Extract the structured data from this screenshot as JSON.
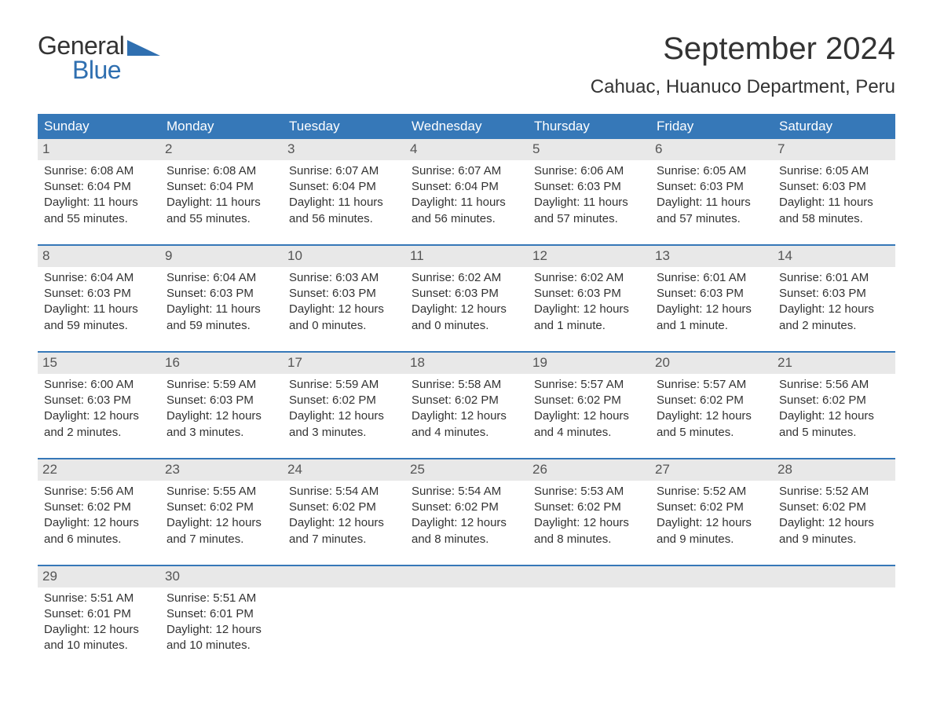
{
  "colors": {
    "brand_blue": "#2f6fb0",
    "header_blue": "#3678b8",
    "text": "#333333",
    "daynum_bg": "#e8e8e8",
    "daynum_text": "#555555",
    "bg": "#ffffff"
  },
  "logo": {
    "general": "General",
    "blue": "Blue"
  },
  "title": "September 2024",
  "location": "Cahuac, Huanuco Department, Peru",
  "weekdays": [
    "Sunday",
    "Monday",
    "Tuesday",
    "Wednesday",
    "Thursday",
    "Friday",
    "Saturday"
  ],
  "weeks": [
    [
      {
        "n": "1",
        "sr": "Sunrise: 6:08 AM",
        "ss": "Sunset: 6:04 PM",
        "d1": "Daylight: 11 hours",
        "d2": "and 55 minutes."
      },
      {
        "n": "2",
        "sr": "Sunrise: 6:08 AM",
        "ss": "Sunset: 6:04 PM",
        "d1": "Daylight: 11 hours",
        "d2": "and 55 minutes."
      },
      {
        "n": "3",
        "sr": "Sunrise: 6:07 AM",
        "ss": "Sunset: 6:04 PM",
        "d1": "Daylight: 11 hours",
        "d2": "and 56 minutes."
      },
      {
        "n": "4",
        "sr": "Sunrise: 6:07 AM",
        "ss": "Sunset: 6:04 PM",
        "d1": "Daylight: 11 hours",
        "d2": "and 56 minutes."
      },
      {
        "n": "5",
        "sr": "Sunrise: 6:06 AM",
        "ss": "Sunset: 6:03 PM",
        "d1": "Daylight: 11 hours",
        "d2": "and 57 minutes."
      },
      {
        "n": "6",
        "sr": "Sunrise: 6:05 AM",
        "ss": "Sunset: 6:03 PM",
        "d1": "Daylight: 11 hours",
        "d2": "and 57 minutes."
      },
      {
        "n": "7",
        "sr": "Sunrise: 6:05 AM",
        "ss": "Sunset: 6:03 PM",
        "d1": "Daylight: 11 hours",
        "d2": "and 58 minutes."
      }
    ],
    [
      {
        "n": "8",
        "sr": "Sunrise: 6:04 AM",
        "ss": "Sunset: 6:03 PM",
        "d1": "Daylight: 11 hours",
        "d2": "and 59 minutes."
      },
      {
        "n": "9",
        "sr": "Sunrise: 6:04 AM",
        "ss": "Sunset: 6:03 PM",
        "d1": "Daylight: 11 hours",
        "d2": "and 59 minutes."
      },
      {
        "n": "10",
        "sr": "Sunrise: 6:03 AM",
        "ss": "Sunset: 6:03 PM",
        "d1": "Daylight: 12 hours",
        "d2": "and 0 minutes."
      },
      {
        "n": "11",
        "sr": "Sunrise: 6:02 AM",
        "ss": "Sunset: 6:03 PM",
        "d1": "Daylight: 12 hours",
        "d2": "and 0 minutes."
      },
      {
        "n": "12",
        "sr": "Sunrise: 6:02 AM",
        "ss": "Sunset: 6:03 PM",
        "d1": "Daylight: 12 hours",
        "d2": "and 1 minute."
      },
      {
        "n": "13",
        "sr": "Sunrise: 6:01 AM",
        "ss": "Sunset: 6:03 PM",
        "d1": "Daylight: 12 hours",
        "d2": "and 1 minute."
      },
      {
        "n": "14",
        "sr": "Sunrise: 6:01 AM",
        "ss": "Sunset: 6:03 PM",
        "d1": "Daylight: 12 hours",
        "d2": "and 2 minutes."
      }
    ],
    [
      {
        "n": "15",
        "sr": "Sunrise: 6:00 AM",
        "ss": "Sunset: 6:03 PM",
        "d1": "Daylight: 12 hours",
        "d2": "and 2 minutes."
      },
      {
        "n": "16",
        "sr": "Sunrise: 5:59 AM",
        "ss": "Sunset: 6:03 PM",
        "d1": "Daylight: 12 hours",
        "d2": "and 3 minutes."
      },
      {
        "n": "17",
        "sr": "Sunrise: 5:59 AM",
        "ss": "Sunset: 6:02 PM",
        "d1": "Daylight: 12 hours",
        "d2": "and 3 minutes."
      },
      {
        "n": "18",
        "sr": "Sunrise: 5:58 AM",
        "ss": "Sunset: 6:02 PM",
        "d1": "Daylight: 12 hours",
        "d2": "and 4 minutes."
      },
      {
        "n": "19",
        "sr": "Sunrise: 5:57 AM",
        "ss": "Sunset: 6:02 PM",
        "d1": "Daylight: 12 hours",
        "d2": "and 4 minutes."
      },
      {
        "n": "20",
        "sr": "Sunrise: 5:57 AM",
        "ss": "Sunset: 6:02 PM",
        "d1": "Daylight: 12 hours",
        "d2": "and 5 minutes."
      },
      {
        "n": "21",
        "sr": "Sunrise: 5:56 AM",
        "ss": "Sunset: 6:02 PM",
        "d1": "Daylight: 12 hours",
        "d2": "and 5 minutes."
      }
    ],
    [
      {
        "n": "22",
        "sr": "Sunrise: 5:56 AM",
        "ss": "Sunset: 6:02 PM",
        "d1": "Daylight: 12 hours",
        "d2": "and 6 minutes."
      },
      {
        "n": "23",
        "sr": "Sunrise: 5:55 AM",
        "ss": "Sunset: 6:02 PM",
        "d1": "Daylight: 12 hours",
        "d2": "and 7 minutes."
      },
      {
        "n": "24",
        "sr": "Sunrise: 5:54 AM",
        "ss": "Sunset: 6:02 PM",
        "d1": "Daylight: 12 hours",
        "d2": "and 7 minutes."
      },
      {
        "n": "25",
        "sr": "Sunrise: 5:54 AM",
        "ss": "Sunset: 6:02 PM",
        "d1": "Daylight: 12 hours",
        "d2": "and 8 minutes."
      },
      {
        "n": "26",
        "sr": "Sunrise: 5:53 AM",
        "ss": "Sunset: 6:02 PM",
        "d1": "Daylight: 12 hours",
        "d2": "and 8 minutes."
      },
      {
        "n": "27",
        "sr": "Sunrise: 5:52 AM",
        "ss": "Sunset: 6:02 PM",
        "d1": "Daylight: 12 hours",
        "d2": "and 9 minutes."
      },
      {
        "n": "28",
        "sr": "Sunrise: 5:52 AM",
        "ss": "Sunset: 6:02 PM",
        "d1": "Daylight: 12 hours",
        "d2": "and 9 minutes."
      }
    ],
    [
      {
        "n": "29",
        "sr": "Sunrise: 5:51 AM",
        "ss": "Sunset: 6:01 PM",
        "d1": "Daylight: 12 hours",
        "d2": "and 10 minutes."
      },
      {
        "n": "30",
        "sr": "Sunrise: 5:51 AM",
        "ss": "Sunset: 6:01 PM",
        "d1": "Daylight: 12 hours",
        "d2": "and 10 minutes."
      },
      null,
      null,
      null,
      null,
      null
    ]
  ]
}
